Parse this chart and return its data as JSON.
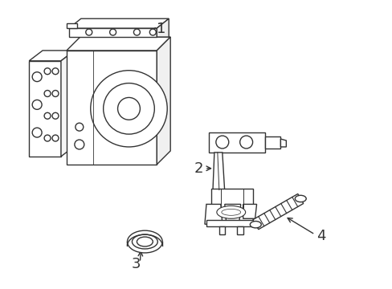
{
  "background_color": "#ffffff",
  "line_color": "#333333",
  "line_width": 1.0,
  "label_color": "#000000",
  "figsize": [
    4.89,
    3.6
  ],
  "dpi": 100
}
